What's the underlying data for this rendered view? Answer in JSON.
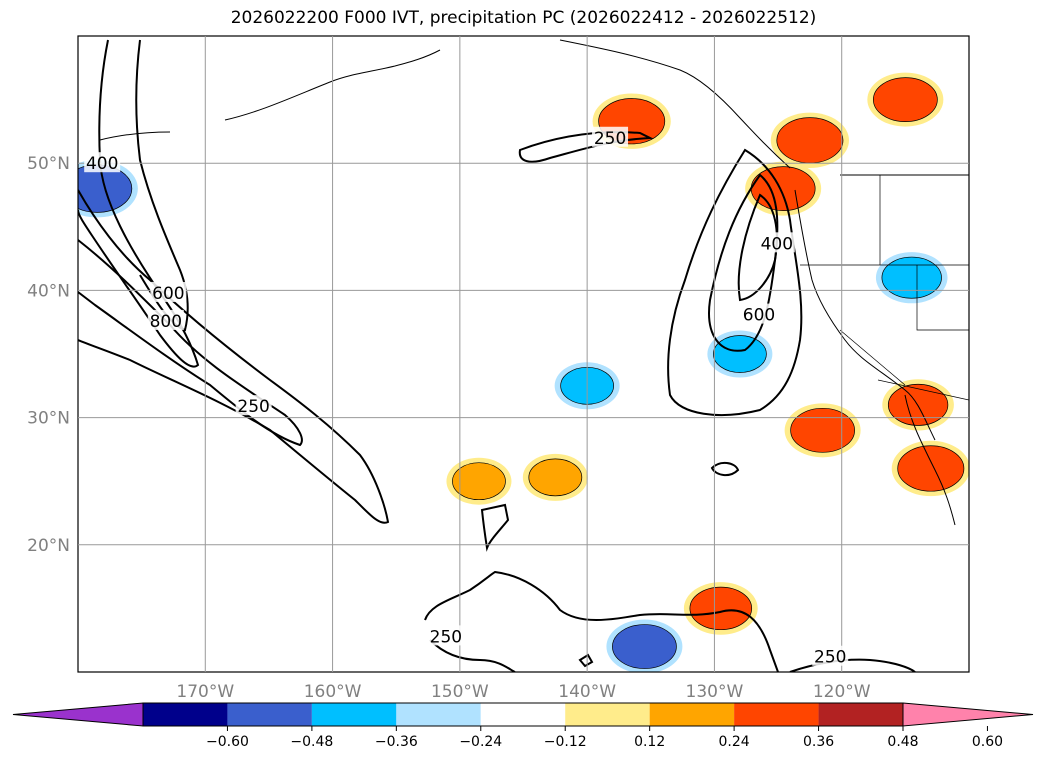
{
  "chart_data": {
    "type": "map-contour",
    "title": "2026022200 F000 IVT, precipitation PC (2026022412 - 2026022512)",
    "lon_range": [
      -180,
      -110
    ],
    "lat_range": [
      10,
      60
    ],
    "lat_ticks": [
      {
        "value": 50,
        "label": "50°N"
      },
      {
        "value": 40,
        "label": "40°N"
      },
      {
        "value": 30,
        "label": "30°N"
      },
      {
        "value": 20,
        "label": "20°N"
      }
    ],
    "lon_ticks": [
      {
        "value": -170,
        "label": "170°W"
      },
      {
        "value": -160,
        "label": "160°W"
      },
      {
        "value": -150,
        "label": "150°W"
      },
      {
        "value": -140,
        "label": "140°W"
      },
      {
        "value": -130,
        "label": "130°W"
      },
      {
        "value": -120,
        "label": "120°W"
      }
    ],
    "ivt_contour_levels": [
      250,
      400,
      600,
      800
    ],
    "contour_labels": [
      {
        "text": "400",
        "lon": -178.1,
        "lat": 50.0
      },
      {
        "text": "600",
        "lon": -172.9,
        "lat": 39.8
      },
      {
        "text": "800",
        "lon": -173.1,
        "lat": 37.6
      },
      {
        "text": "250",
        "lon": -166.2,
        "lat": 30.9
      },
      {
        "text": "250",
        "lon": -138.2,
        "lat": 52.0
      },
      {
        "text": "400",
        "lon": -125.1,
        "lat": 43.7
      },
      {
        "text": "600",
        "lon": -126.5,
        "lat": 38.1
      },
      {
        "text": "250",
        "lon": -151.1,
        "lat": 12.8
      },
      {
        "text": "250",
        "lon": -120.9,
        "lat": 11.2
      }
    ],
    "colorbar": {
      "ticks": [
        "−0.60",
        "−0.48",
        "−0.36",
        "−0.24",
        "−0.12",
        "0.12",
        "0.24",
        "0.36",
        "0.48",
        "0.60"
      ],
      "colors": [
        "#9a32cd",
        "#00008b",
        "#3a5fcd",
        "#00bfff",
        "#b0e2ff",
        "#ffffff",
        "#ffec8b",
        "#ffa500",
        "#ff4500",
        "#b22222",
        "#ff82ab"
      ]
    },
    "precip_pc_regions": [
      {
        "lon": -136.5,
        "lat": 53.3,
        "value": 0.42
      },
      {
        "lon": -122.5,
        "lat": 51.8,
        "value": 0.42
      },
      {
        "lon": -115.0,
        "lat": 55.0,
        "value": 0.4
      },
      {
        "lon": -124.6,
        "lat": 48.0,
        "value": 0.4
      },
      {
        "lon": -121.5,
        "lat": 29.0,
        "value": 0.4
      },
      {
        "lon": -113.0,
        "lat": 26.0,
        "value": 0.42
      },
      {
        "lon": -114.0,
        "lat": 31.0,
        "value": 0.36
      },
      {
        "lon": -129.5,
        "lat": 15.0,
        "value": 0.38
      },
      {
        "lon": -148.5,
        "lat": 25.0,
        "value": 0.3
      },
      {
        "lon": -142.5,
        "lat": 25.3,
        "value": 0.3
      },
      {
        "lon": -178.5,
        "lat": 48.0,
        "value": -0.45
      },
      {
        "lon": -114.5,
        "lat": 41.0,
        "value": -0.36
      },
      {
        "lon": -135.5,
        "lat": 12.0,
        "value": -0.4
      },
      {
        "lon": -140.0,
        "lat": 32.5,
        "value": -0.3
      },
      {
        "lon": -128.0,
        "lat": 35.0,
        "value": -0.3
      }
    ]
  }
}
